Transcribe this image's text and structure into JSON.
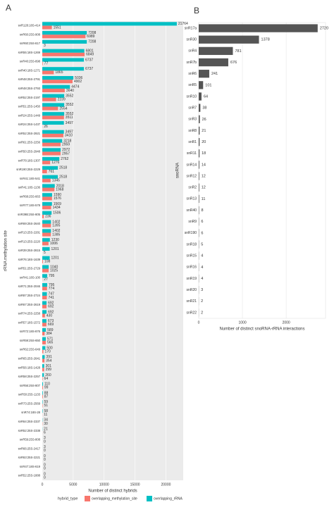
{
  "chart_data": [
    {
      "type": "bar",
      "panel": "A",
      "orientation": "horizontal",
      "xlabel": "Number of distinct hybrids",
      "ylabel": "rRNA methylation site",
      "legend_title": "hybrid_type",
      "legend": "bottom",
      "grid": true,
      "categories": [
        "snR128:18S-414",
        "snR60:25S-908",
        "snR60:25S-817",
        "snR55:18S-1269",
        "snR40:25S-898",
        "snR40:18S-1271",
        "snR48:25S-2791",
        "snR48:25S-2793",
        "snR52:25S-2197",
        "snR51:25S-1450",
        "snR24:25S-1449",
        "snR24:25S-1437",
        "snR52:25S-2921",
        "snR61:25S-2256",
        "snR50:25S-2948",
        "snR78:18S-1307",
        "snR190:25S-2229",
        "snR41:18S-541",
        "snR41:18S-1136",
        "snR68:25S-663",
        "snR77:18S-578",
        "snR39B:25S-805",
        "snR69:25S-2640",
        "snR13:25S-2281",
        "snR13:25S-2220",
        "snR39:25S-2815",
        "snR76:18S-1639",
        "snR51:25S-2729",
        "snR41:18S-100",
        "snR71:25S-2046",
        "snR87:25S-2724",
        "snR67:25S-2619",
        "snR74:25S-2258",
        "snR57:18S-1572",
        "snR72:18S-876",
        "snR59:25S-650",
        "snR62:25S-649",
        "snR65:25S-2641",
        "snR56:18S-1428",
        "snR58:25S-2257",
        "snR56:25S-807",
        "snR50:25S-1133",
        "snR73:25S-2569",
        "snR74:18S-28",
        "snR64:25S-2337",
        "snR52:25S-2338",
        "snR59:25S-808",
        "snR66:25S-2417",
        "snR63:25S-2221",
        "snR47:18S-619",
        "snR52:25S-1888"
      ],
      "series": [
        {
          "name": "overlapping_methylation_site",
          "color": "#f8766d",
          "values": [
            1551,
            6989,
            3,
            6849,
            77,
            1865,
            4902,
            3640,
            2239,
            2554,
            3511,
            26,
            3410,
            2959,
            2957,
            1276,
            761,
            1345,
            1968,
            1576,
            1434,
            236,
            1395,
            1385,
            1006,
            5,
            108,
            1025,
            27,
            774,
            741,
            692,
            430,
            669,
            384,
            565,
            170,
            354,
            299,
            64,
            99,
            87,
            51,
            11,
            30,
            6,
            0,
            0,
            0,
            0,
            0
          ]
        },
        {
          "name": "overlapping_rRNA",
          "color": "#00bfc4",
          "values": [
            21764,
            7208,
            7208,
            6801,
            6737,
            6737,
            5036,
            4474,
            3552,
            3552,
            3552,
            3497,
            3497,
            3218,
            2972,
            2762,
            2518,
            2518,
            2018,
            1590,
            1569,
            1506,
            1402,
            1402,
            1230,
            1201,
            1201,
            1040,
            795,
            795,
            747,
            692,
            692,
            673,
            589,
            571,
            500,
            391,
            301,
            260,
            110,
            88,
            59,
            58,
            34,
            21,
            3,
            3,
            0,
            0,
            0
          ]
        }
      ],
      "xlim": [
        0,
        22800
      ],
      "xticks": [
        0,
        5000,
        10000,
        15000,
        20000
      ]
    },
    {
      "type": "bar",
      "panel": "B",
      "orientation": "horizontal",
      "xlabel": "Number of distinct snoRNA-rRNA interactions",
      "ylabel": "snoRNA",
      "grid": true,
      "categories": [
        "snR17a",
        "snR30",
        "snR4",
        "snR7b",
        "snR6",
        "snR5",
        "snR10",
        "snR7",
        "snR3",
        "snR8",
        "snR1",
        "snR11",
        "snR14",
        "snR12",
        "snR2",
        "snR13",
        "snR40",
        "snR9",
        "snR190",
        "snR18",
        "snR15",
        "snR16",
        "snR19",
        "snR20",
        "snR21",
        "snR22"
      ],
      "values": [
        2720,
        1378,
        781,
        676,
        241,
        101,
        64,
        38,
        26,
        21,
        20,
        18,
        14,
        12,
        12,
        11,
        8,
        6,
        6,
        5,
        4,
        4,
        4,
        3,
        2,
        2
      ],
      "color": "#555555",
      "xlim": [
        0,
        2900
      ],
      "xticks": [
        0,
        1000,
        2000
      ]
    }
  ]
}
